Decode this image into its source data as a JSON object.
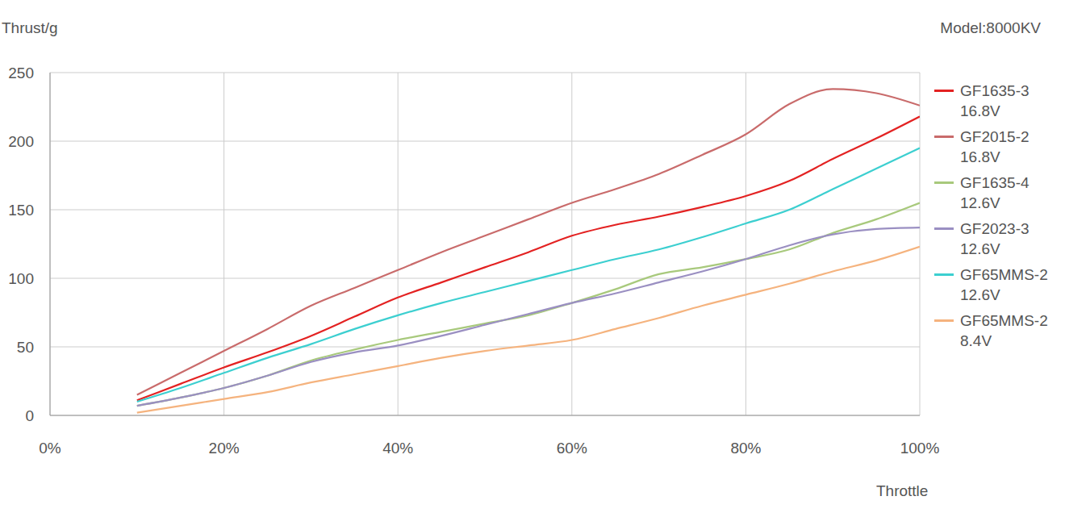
{
  "chart_data": {
    "type": "line",
    "title": "Model:8000KV",
    "x_label": "Throttle",
    "y_label": "Thrust/g",
    "x": [
      10,
      15,
      20,
      25,
      30,
      35,
      40,
      45,
      50,
      55,
      60,
      65,
      70,
      75,
      80,
      85,
      90,
      95,
      100
    ],
    "xlim": [
      0,
      100
    ],
    "xticks": [
      {
        "value": 0,
        "label": "0%"
      },
      {
        "value": 20,
        "label": "20%"
      },
      {
        "value": 40,
        "label": "40%"
      },
      {
        "value": 60,
        "label": "60%"
      },
      {
        "value": 80,
        "label": "80%"
      },
      {
        "value": 100,
        "label": "100%"
      }
    ],
    "ylim": [
      0,
      250
    ],
    "yticks": [
      0,
      50,
      100,
      150,
      200,
      250
    ],
    "grid": true,
    "legend": "right",
    "series": [
      {
        "name": "GF1635-3 16.8V",
        "color": "#e32222",
        "values": [
          11,
          23,
          35,
          46,
          58,
          72,
          86,
          97,
          108,
          119,
          131,
          139,
          145,
          152,
          160,
          171,
          187,
          202,
          218
        ]
      },
      {
        "name": "GF2015-2 16.8V",
        "color": "#c96b6b",
        "values": [
          15,
          31,
          47,
          63,
          80,
          93,
          106,
          119,
          131,
          143,
          155,
          165,
          176,
          190,
          205,
          227,
          238,
          235,
          226
        ]
      },
      {
        "name": "GF1635-4 12.6V",
        "color": "#a8c97c",
        "values": [
          7,
          13,
          20,
          29,
          40,
          48,
          55,
          61,
          67,
          73,
          82,
          92,
          103,
          108,
          114,
          121,
          133,
          143,
          155
        ]
      },
      {
        "name": "GF2023-3 12.6V",
        "color": "#9a8fc2",
        "values": [
          7,
          13,
          20,
          29,
          39,
          46,
          51,
          58,
          66,
          74,
          82,
          89,
          97,
          105,
          114,
          124,
          132,
          136,
          137
        ]
      },
      {
        "name": "GF65MMS-2 12.6V",
        "color": "#3ccfd0",
        "values": [
          10,
          20,
          31,
          42,
          52,
          63,
          73,
          82,
          90,
          98,
          106,
          114,
          121,
          130,
          140,
          150,
          165,
          180,
          195
        ]
      },
      {
        "name": "GF65MMS-2 8.4V",
        "color": "#f5b37e",
        "values": [
          2,
          7,
          12,
          17,
          24,
          30,
          36,
          42,
          47,
          51,
          55,
          63,
          71,
          80,
          88,
          96,
          105,
          113,
          123
        ]
      }
    ]
  }
}
